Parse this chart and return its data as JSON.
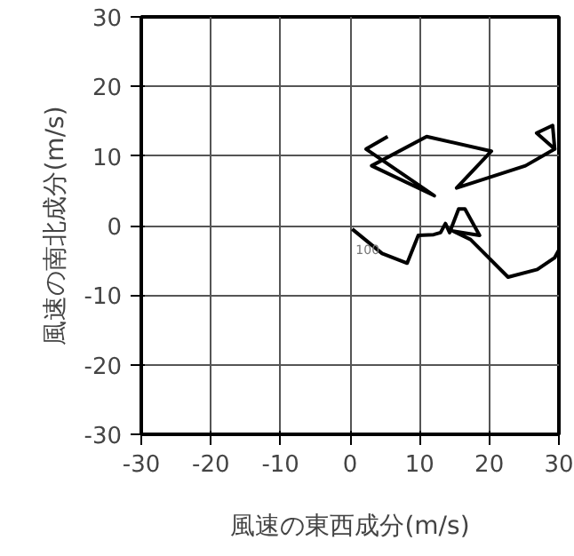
{
  "chart_data": {
    "type": "line",
    "xlabel": "風速の東西成分(m/s)",
    "ylabel": "風速の南北成分(m/s)",
    "series": [
      {
        "color": "#000000",
        "x": [
          0.3,
          4.6,
          8.2,
          9.8,
          12,
          13,
          13.7,
          14.3,
          15.6,
          16.5,
          18.6,
          14.8,
          17.3,
          22.7,
          26.9,
          29.4,
          30,
          null,
          29.4,
          29.1,
          26.8,
          29.4,
          25.2,
          15.3,
          20.3,
          11,
          3.1,
          12.1,
          2.3,
          5.4
        ],
        "values": [
          -0.5,
          -4,
          -5.4,
          -1.4,
          -1.3,
          -1,
          0.3,
          -1,
          2.4,
          2.4,
          -1.4,
          -0.8,
          -2,
          -7.4,
          -6.3,
          -4.6,
          -3.5,
          null,
          11,
          14.4,
          13.3,
          11,
          8.6,
          5.4,
          10.7,
          12.8,
          8.6,
          4.3,
          11,
          12.8
        ]
      }
    ],
    "annotations": [
      {
        "text": "100",
        "x": 0.3,
        "y": -0.5
      }
    ],
    "xlim": [
      -30,
      30
    ],
    "ylim": [
      -30,
      30
    ],
    "xticks": [
      -30,
      -20,
      -10,
      0,
      10,
      20,
      30
    ],
    "yticks": [
      -30,
      -20,
      -10,
      0,
      10,
      20,
      30
    ],
    "grid": true,
    "marker": "none",
    "line_style": "solid"
  }
}
